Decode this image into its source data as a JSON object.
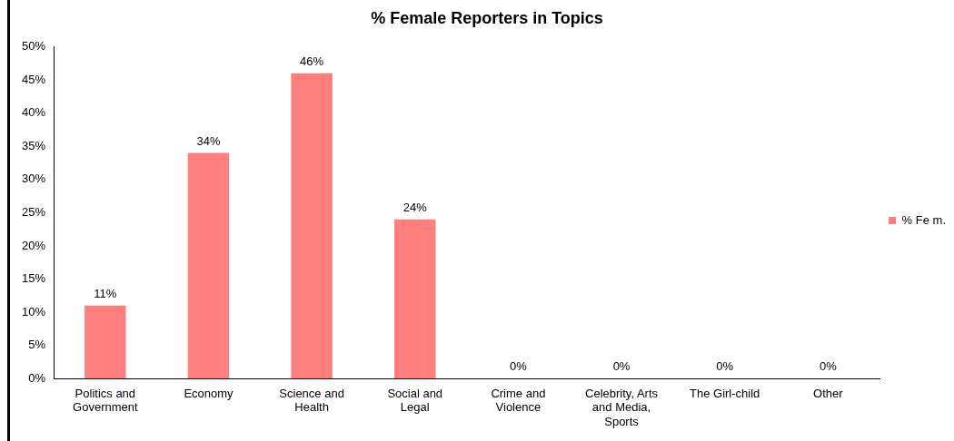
{
  "chart_data": {
    "type": "bar",
    "title": "% Female Reporters in Topics",
    "categories": [
      "Politics and Government",
      "Economy",
      "Science and Health",
      "Social and Legal",
      "Crime and Violence",
      "Celebrity, Arts and Media, Sports",
      "The Girl-child",
      "Other"
    ],
    "series": [
      {
        "name": "% Fe m.",
        "color": "#ff7f7f",
        "values": [
          11,
          34,
          46,
          24,
          0,
          0,
          0,
          0
        ],
        "value_labels": [
          "11%",
          "34%",
          "46%",
          "24%",
          "0%",
          "0%",
          "0%",
          "0%"
        ]
      }
    ],
    "ylim": [
      0,
      50
    ],
    "yticks": [
      {
        "value": 0,
        "label": "0%"
      },
      {
        "value": 5,
        "label": "5%"
      },
      {
        "value": 10,
        "label": "10%"
      },
      {
        "value": 15,
        "label": "15%"
      },
      {
        "value": 20,
        "label": "20%"
      },
      {
        "value": 25,
        "label": "25%"
      },
      {
        "value": 30,
        "label": "30%"
      },
      {
        "value": 35,
        "label": "35%"
      },
      {
        "value": 40,
        "label": "40%"
      },
      {
        "value": 45,
        "label": "45%"
      },
      {
        "value": 50,
        "label": "50%"
      }
    ],
    "grid": false,
    "legend": "right"
  }
}
